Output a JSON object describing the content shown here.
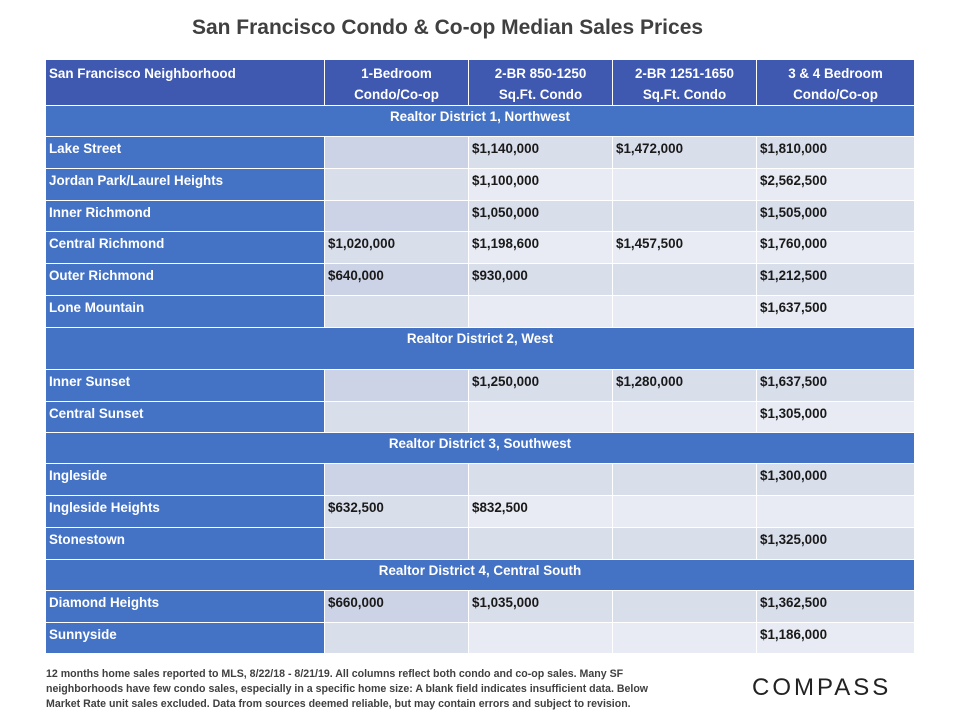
{
  "title": "San Francisco Condo & Co-op Median Sales Prices",
  "columns": [
    {
      "line1": "San Francisco Neighborhood",
      "line2": ""
    },
    {
      "line1": "1-Bedroom",
      "line2": "Condo/Co-op"
    },
    {
      "line1": "2-BR 850-1250",
      "line2": "Sq.Ft. Condo"
    },
    {
      "line1": "2-BR 1251-1650",
      "line2": "Sq.Ft. Condo"
    },
    {
      "line1": "3 & 4 Bedroom",
      "line2": "Condo/Co-op"
    }
  ],
  "districts": [
    {
      "label": "Realtor District 1, Northwest",
      "rows": [
        {
          "name": "Lake Street",
          "br1": "",
          "br2a": "$1,140,000",
          "br2b": "$1,472,000",
          "br34": "$1,810,000"
        },
        {
          "name": "Jordan Park/Laurel Heights",
          "br1": "",
          "br2a": "$1,100,000",
          "br2b": "",
          "br34": "$2,562,500"
        },
        {
          "name": "Inner Richmond",
          "br1": "",
          "br2a": "$1,050,000",
          "br2b": "",
          "br34": "$1,505,000"
        },
        {
          "name": "Central Richmond",
          "br1": "$1,020,000",
          "br2a": "$1,198,600",
          "br2b": "$1,457,500",
          "br34": "$1,760,000"
        },
        {
          "name": "Outer Richmond",
          "br1": "$640,000",
          "br2a": "$930,000",
          "br2b": "",
          "br34": "$1,212,500"
        },
        {
          "name": "Lone Mountain",
          "br1": "",
          "br2a": "",
          "br2b": "",
          "br34": "$1,637,500"
        }
      ]
    },
    {
      "label": "Realtor District 2, West",
      "rows": [
        {
          "name": "Inner Sunset",
          "br1": "",
          "br2a": "$1,250,000",
          "br2b": "$1,280,000",
          "br34": "$1,637,500"
        },
        {
          "name": "Central Sunset",
          "br1": "",
          "br2a": "",
          "br2b": "",
          "br34": "$1,305,000"
        }
      ]
    },
    {
      "label": "Realtor District 3, Southwest",
      "rows": [
        {
          "name": "Ingleside",
          "br1": "",
          "br2a": "",
          "br2b": "",
          "br34": "$1,300,000"
        },
        {
          "name": "Ingleside Heights",
          "br1": "$632,500",
          "br2a": "$832,500",
          "br2b": "",
          "br34": ""
        },
        {
          "name": "Stonestown",
          "br1": "",
          "br2a": "",
          "br2b": "",
          "br34": "$1,325,000"
        }
      ]
    },
    {
      "label": "Realtor District 4, Central South",
      "rows": [
        {
          "name": "Diamond Heights",
          "br1": "$660,000",
          "br2a": "$1,035,000",
          "br2b": "",
          "br34": "$1,362,500"
        },
        {
          "name": "Sunnyside",
          "br1": "",
          "br2a": "",
          "br2b": "",
          "br34": "$1,186,000"
        }
      ]
    }
  ],
  "footnote": {
    "line1": "12 months home sales reported to MLS, 8/22/18 - 8/21/19. All columns reflect both condo and co-op sales. Many SF",
    "line2": "neighborhoods have few condo sales, especially in a specific home size: A blank field indicates insufficient data. Below",
    "line3": "Market Rate unit sales excluded. Data from sources deemed reliable, but may contain errors and subject to revision."
  },
  "logo": "COMPASS"
}
